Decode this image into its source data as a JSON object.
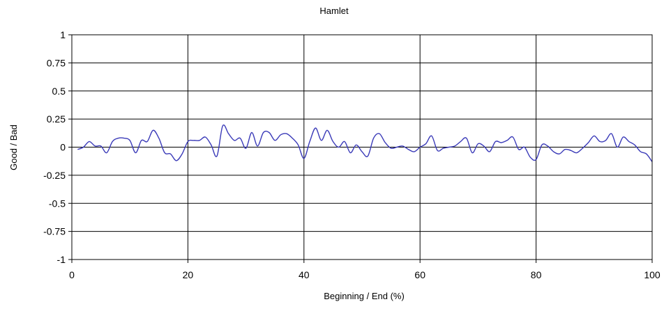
{
  "chart_data": {
    "type": "line",
    "title": "Hamlet",
    "xlabel": "Beginning / End (%)",
    "ylabel": "Good / Bad",
    "xlim": [
      0,
      100
    ],
    "ylim": [
      -1,
      1
    ],
    "x_ticks": [
      "0",
      "20",
      "40",
      "60",
      "80",
      "100"
    ],
    "y_ticks": [
      "1",
      "0.75",
      "0.5",
      "0.25",
      "0",
      "-0.25",
      "-0.5",
      "-0.75",
      "-1"
    ],
    "grid": true,
    "legend": "none",
    "line_color": "#3a3ab8",
    "series": [
      {
        "x": [
          1,
          2,
          3,
          4,
          5,
          6,
          7,
          8,
          9,
          10,
          11,
          12,
          13,
          14,
          15,
          16,
          17,
          18,
          19,
          20,
          21,
          22,
          23,
          24,
          25,
          26,
          27,
          28,
          29,
          30,
          31,
          32,
          33,
          34,
          35,
          36,
          37,
          38,
          39,
          40,
          41,
          42,
          43,
          44,
          45,
          46,
          47,
          48,
          49,
          50,
          51,
          52,
          53,
          54,
          55,
          56,
          57,
          58,
          59,
          60,
          61,
          62,
          63,
          64,
          65,
          66,
          67,
          68,
          69,
          70,
          71,
          72,
          73,
          74,
          75,
          76,
          77,
          78,
          79,
          80,
          81,
          82,
          83,
          84,
          85,
          86,
          87,
          88,
          89,
          90,
          91,
          92,
          93,
          94,
          95,
          96,
          97,
          98,
          99,
          100
        ],
        "y": [
          -0.02,
          0.0,
          0.05,
          0.01,
          0.01,
          -0.05,
          0.05,
          0.08,
          0.08,
          0.06,
          -0.05,
          0.06,
          0.05,
          0.15,
          0.08,
          -0.05,
          -0.06,
          -0.12,
          -0.06,
          0.05,
          0.06,
          0.06,
          0.09,
          0.02,
          -0.08,
          0.19,
          0.12,
          0.06,
          0.08,
          -0.01,
          0.13,
          0.01,
          0.13,
          0.13,
          0.06,
          0.11,
          0.12,
          0.08,
          0.02,
          -0.1,
          0.05,
          0.17,
          0.06,
          0.15,
          0.05,
          0.0,
          0.05,
          -0.05,
          0.02,
          -0.04,
          -0.08,
          0.08,
          0.12,
          0.04,
          -0.01,
          0.0,
          0.01,
          -0.02,
          -0.04,
          0.0,
          0.03,
          0.1,
          -0.03,
          -0.01,
          0.0,
          0.01,
          0.05,
          0.08,
          -0.05,
          0.03,
          0.01,
          -0.04,
          0.05,
          0.04,
          0.06,
          0.09,
          -0.02,
          0.0,
          -0.09,
          -0.11,
          0.02,
          0.01,
          -0.04,
          -0.06,
          -0.02,
          -0.03,
          -0.05,
          -0.01,
          0.04,
          0.1,
          0.05,
          0.06,
          0.12,
          0.0,
          0.09,
          0.05,
          0.02,
          -0.04,
          -0.06,
          -0.13
        ]
      }
    ]
  }
}
